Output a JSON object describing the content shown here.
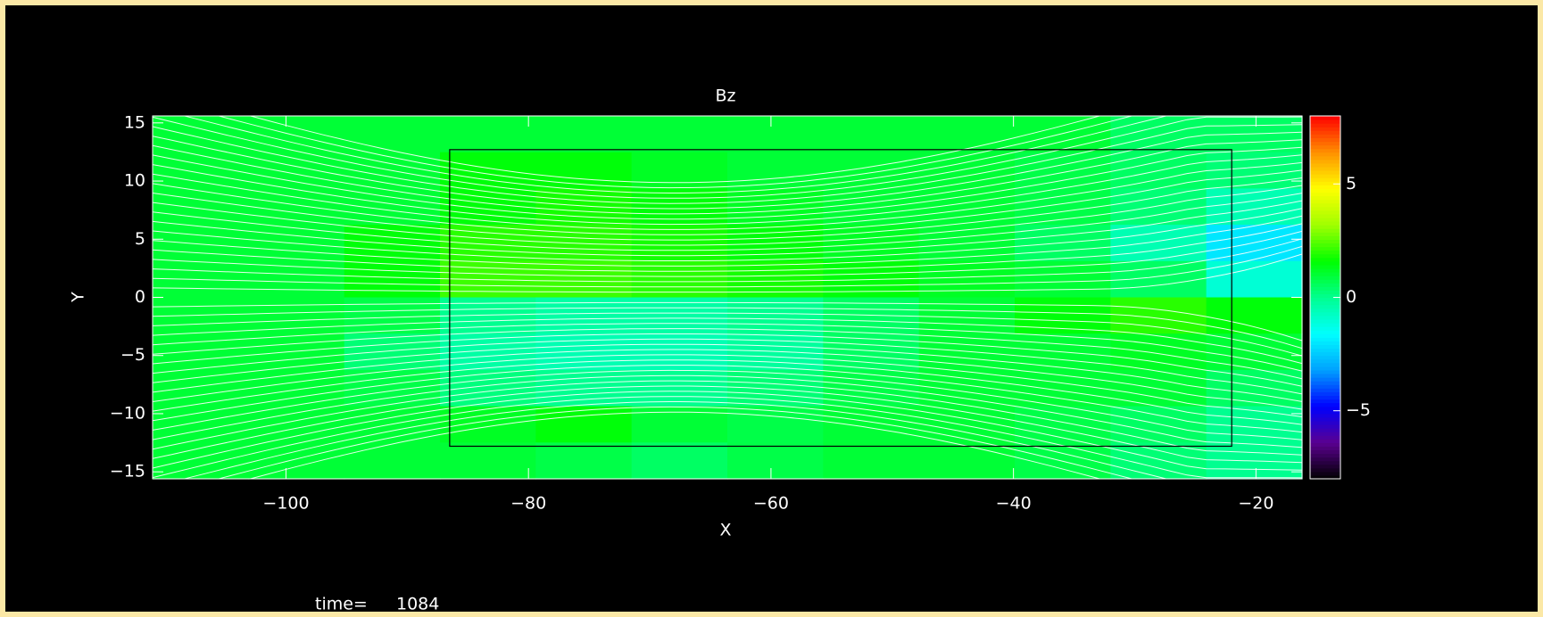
{
  "chart_data": {
    "type": "heatmap",
    "title": "Bz",
    "x_label": "X",
    "y_label": "Y",
    "xlim": [
      -111,
      -16.2
    ],
    "ylim": [
      -15.6,
      15.6
    ],
    "xticks": [
      {
        "value": -100,
        "label": "−100"
      },
      {
        "value": -80,
        "label": "−80"
      },
      {
        "value": -60,
        "label": "−60"
      },
      {
        "value": -40,
        "label": "−40"
      },
      {
        "value": -20,
        "label": "−20"
      }
    ],
    "yticks": [
      {
        "value": -15,
        "label": "−15"
      },
      {
        "value": -10,
        "label": "−10"
      },
      {
        "value": -5,
        "label": "−5"
      },
      0,
      5,
      10,
      15
    ],
    "z": [
      [
        1,
        1,
        1,
        1,
        1,
        1,
        1,
        1,
        1,
        1,
        0.5,
        0.5
      ],
      [
        1,
        1,
        1,
        1.5,
        1.5,
        1.2,
        1,
        1,
        1,
        0.8,
        0.5,
        0.3
      ],
      [
        1,
        1,
        1,
        1.5,
        1.8,
        1.5,
        1.2,
        1,
        1,
        0.8,
        0.3,
        -0.5
      ],
      [
        1,
        1,
        1.5,
        2,
        2,
        1.8,
        1.5,
        1.2,
        1,
        0.5,
        -0.5,
        -2
      ],
      [
        1,
        1,
        1.5,
        2.2,
        2.2,
        2,
        1.8,
        1.5,
        1.2,
        1,
        0.5,
        -1
      ],
      [
        1,
        1,
        0.8,
        0,
        -0.3,
        -0.3,
        0,
        0.5,
        1,
        1.5,
        2,
        1.5
      ],
      [
        1,
        1,
        0.3,
        -0.3,
        -0.5,
        -0.5,
        -0.2,
        0.5,
        1,
        1,
        1.2,
        1
      ],
      [
        1,
        1,
        0.8,
        0.2,
        0,
        0,
        0.3,
        0.8,
        1,
        1,
        1,
        0.5
      ],
      [
        1,
        1,
        1,
        1.2,
        1.5,
        1,
        0.8,
        1,
        1,
        0.8,
        0.5,
        0
      ],
      [
        1,
        1,
        1,
        1,
        0.8,
        0.5,
        0.8,
        1,
        1,
        0.8,
        0.3,
        0
      ]
    ],
    "clim": [
      -8,
      8
    ],
    "cticks": [
      {
        "value": -5,
        "label": "−5"
      },
      0,
      5
    ],
    "colormap": [
      "#000000",
      "#5a0090",
      "#0000ff",
      "#00a0ff",
      "#00ffff",
      "#00ff90",
      "#00ff00",
      "#a0ff00",
      "#ffff00",
      "#ff9000",
      "#ff0000"
    ],
    "box": {
      "x": [
        -86.5,
        -22
      ],
      "y": [
        -12.8,
        12.7
      ]
    },
    "time_label": "time=",
    "time": 1084
  }
}
